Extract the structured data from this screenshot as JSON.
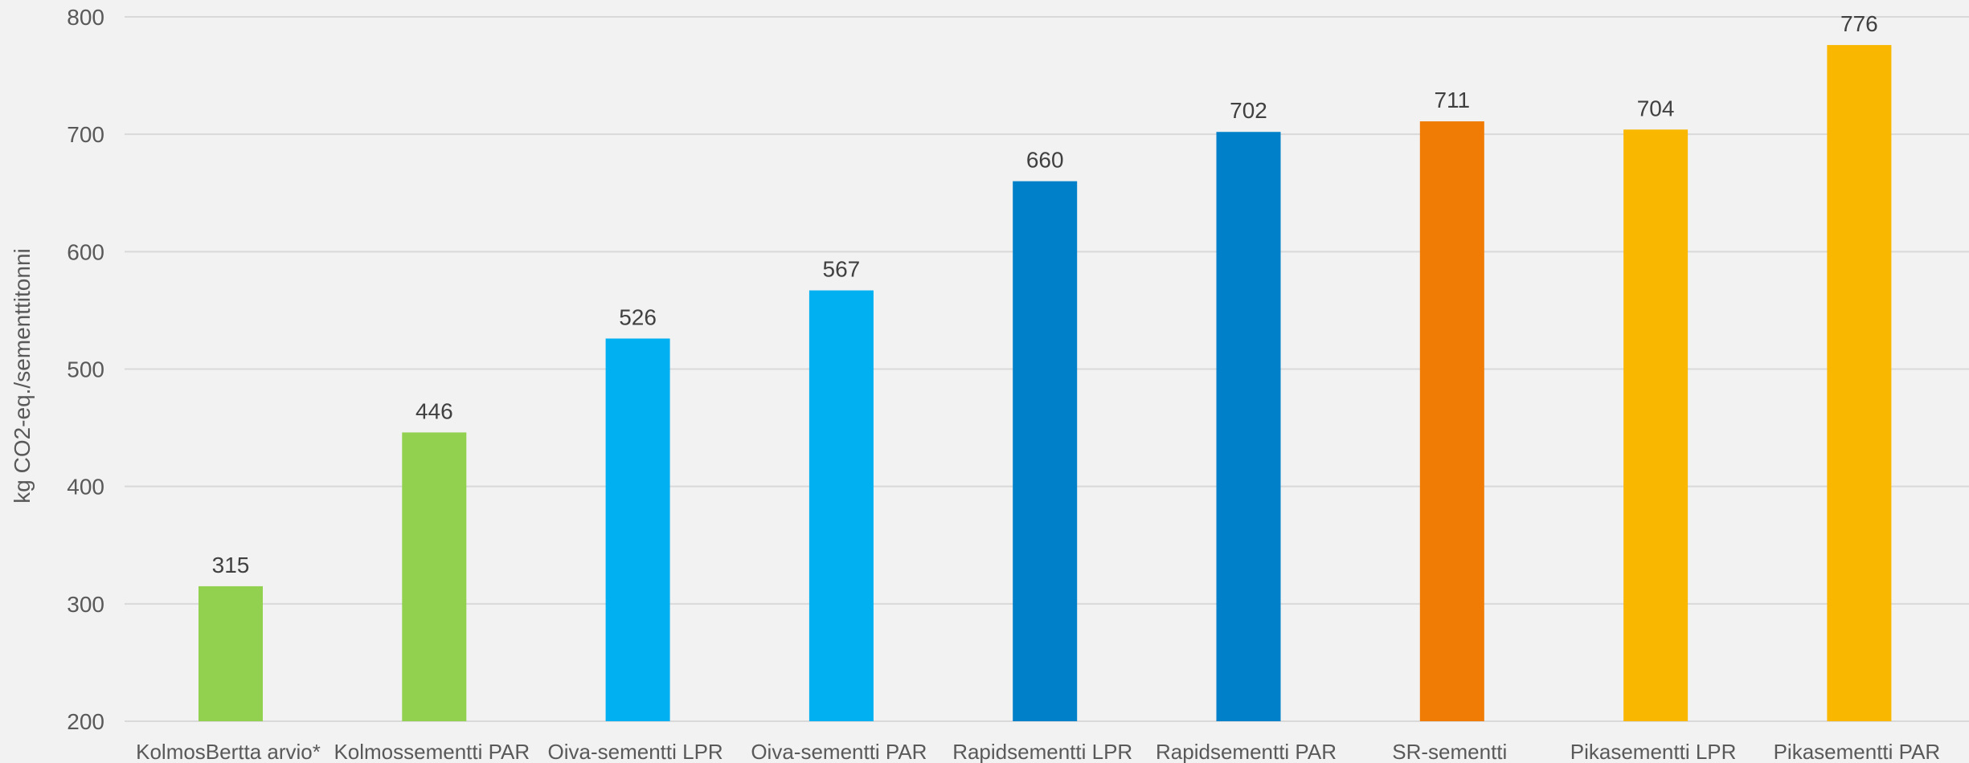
{
  "chart_data": {
    "type": "bar",
    "title": "",
    "xlabel": "",
    "ylabel": "kg CO2-eq./sementtitonni",
    "ylim": [
      200,
      800
    ],
    "yticks": [
      200,
      300,
      400,
      500,
      600,
      700,
      800
    ],
    "grid": true,
    "legend": "none",
    "categories": [
      "KolmosBertta arvio*",
      "Kolmossementti PAR",
      "Oiva-sementti LPR",
      "Oiva-sementti PAR",
      "Rapidsementti LPR",
      "Rapidsementti PAR",
      "SR-sementti",
      "Pikasementti LPR",
      "Pikasementti PAR"
    ],
    "values": [
      315,
      446,
      526,
      567,
      660,
      702,
      711,
      704,
      776
    ],
    "bar_colors": [
      "#92d050",
      "#92d050",
      "#00b0f0",
      "#00b0f0",
      "#0080c8",
      "#0080c8",
      "#f07b05",
      "#f9b700",
      "#f9b700"
    ],
    "data_labels": [
      "315",
      "446",
      "526",
      "567",
      "660",
      "702",
      "711",
      "704",
      "776"
    ]
  }
}
